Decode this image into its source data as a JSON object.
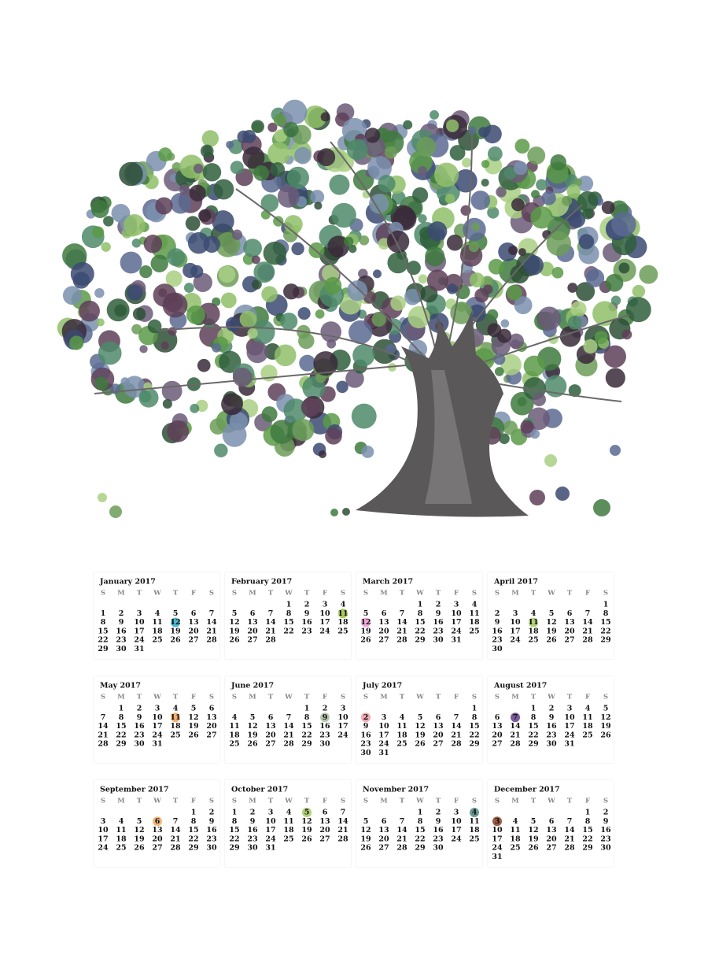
{
  "weekdays": [
    "S",
    "M",
    "T",
    "W",
    "T",
    "F",
    "S"
  ],
  "months": [
    {
      "title": "January  2017",
      "highlight": {
        "day": 12,
        "color": "#4fb7cf"
      },
      "weeks": [
        [
          null,
          null,
          null,
          null,
          null,
          null,
          null
        ],
        [
          1,
          2,
          3,
          4,
          5,
          6,
          7
        ],
        [
          8,
          9,
          10,
          11,
          12,
          13,
          14
        ],
        [
          15,
          16,
          17,
          18,
          19,
          20,
          21
        ],
        [
          22,
          23,
          24,
          25,
          26,
          27,
          28
        ],
        [
          29,
          30,
          31,
          null,
          null,
          null,
          null
        ]
      ]
    },
    {
      "title": "February 2017",
      "highlight": {
        "day": 11,
        "color": "#a9c95a"
      },
      "weeks": [
        [
          null,
          null,
          null,
          1,
          2,
          3,
          4
        ],
        [
          5,
          6,
          7,
          8,
          9,
          10,
          11
        ],
        [
          12,
          13,
          14,
          15,
          16,
          17,
          18
        ],
        [
          19,
          20,
          21,
          22,
          23,
          24,
          25
        ],
        [
          26,
          27,
          28,
          null,
          null,
          null,
          null
        ]
      ]
    },
    {
      "title": "March 2017",
      "highlight": {
        "day": 12,
        "color": "#f0a8d8"
      },
      "weeks": [
        [
          null,
          null,
          null,
          1,
          2,
          3,
          4
        ],
        [
          5,
          6,
          7,
          8,
          9,
          10,
          11
        ],
        [
          12,
          13,
          14,
          15,
          16,
          17,
          18
        ],
        [
          19,
          20,
          21,
          22,
          23,
          24,
          25
        ],
        [
          26,
          27,
          28,
          29,
          30,
          31,
          null
        ]
      ]
    },
    {
      "title": "April 2017",
      "highlight": {
        "day": 11,
        "color": "#b5d27a"
      },
      "weeks": [
        [
          null,
          null,
          null,
          null,
          null,
          null,
          1
        ],
        [
          2,
          3,
          4,
          5,
          6,
          7,
          8
        ],
        [
          9,
          10,
          11,
          12,
          13,
          14,
          15
        ],
        [
          16,
          17,
          18,
          19,
          20,
          21,
          22
        ],
        [
          23,
          24,
          25,
          26,
          27,
          28,
          29
        ],
        [
          30,
          null,
          null,
          null,
          null,
          null,
          null
        ]
      ]
    },
    {
      "title": "May 2017",
      "highlight": {
        "day": 11,
        "color": "#f2b070"
      },
      "weeks": [
        [
          null,
          1,
          2,
          3,
          4,
          5,
          6
        ],
        [
          7,
          8,
          9,
          10,
          11,
          12,
          13
        ],
        [
          14,
          15,
          16,
          17,
          18,
          19,
          20
        ],
        [
          21,
          22,
          23,
          24,
          25,
          26,
          27
        ],
        [
          28,
          29,
          30,
          31,
          null,
          null,
          null
        ]
      ]
    },
    {
      "title": "June 2017",
      "highlight": {
        "day": 9,
        "color": "#b8c8b0"
      },
      "weeks": [
        [
          null,
          null,
          null,
          null,
          1,
          2,
          3
        ],
        [
          4,
          5,
          6,
          7,
          8,
          9,
          10
        ],
        [
          11,
          12,
          13,
          14,
          15,
          16,
          17
        ],
        [
          18,
          19,
          20,
          21,
          22,
          23,
          24
        ],
        [
          25,
          26,
          27,
          28,
          29,
          30,
          null
        ]
      ]
    },
    {
      "title": "July 2017",
      "highlight": {
        "day": 2,
        "color": "#f3a9b3"
      },
      "weeks": [
        [
          null,
          null,
          null,
          null,
          null,
          null,
          1
        ],
        [
          2,
          3,
          4,
          5,
          6,
          7,
          8
        ],
        [
          9,
          10,
          11,
          12,
          13,
          14,
          15
        ],
        [
          16,
          17,
          18,
          19,
          20,
          21,
          22
        ],
        [
          23,
          24,
          25,
          26,
          27,
          28,
          29
        ],
        [
          30,
          31,
          null,
          null,
          null,
          null,
          null
        ]
      ]
    },
    {
      "title": "August 2017",
      "highlight": {
        "day": 7,
        "color": "#7b5a9a"
      },
      "weeks": [
        [
          null,
          null,
          1,
          2,
          3,
          4,
          5
        ],
        [
          6,
          7,
          8,
          9,
          10,
          11,
          12
        ],
        [
          13,
          14,
          15,
          16,
          17,
          18,
          19
        ],
        [
          20,
          21,
          22,
          23,
          24,
          25,
          26
        ],
        [
          27,
          28,
          29,
          30,
          31,
          null,
          null
        ]
      ]
    },
    {
      "title": "September 2017",
      "highlight": {
        "day": 6,
        "color": "#f4b67a"
      },
      "weeks": [
        [
          null,
          null,
          null,
          null,
          null,
          1,
          2
        ],
        [
          3,
          4,
          5,
          6,
          7,
          8,
          9
        ],
        [
          10,
          11,
          12,
          13,
          14,
          15,
          16
        ],
        [
          17,
          18,
          19,
          20,
          21,
          22,
          23
        ],
        [
          24,
          25,
          26,
          27,
          28,
          29,
          30
        ]
      ]
    },
    {
      "title": "October 2017",
      "highlight": {
        "day": 5,
        "color": "#b2d17a"
      },
      "weeks": [
        [
          1,
          2,
          3,
          4,
          5,
          6,
          7
        ],
        [
          8,
          9,
          10,
          11,
          12,
          13,
          14
        ],
        [
          15,
          16,
          17,
          18,
          19,
          20,
          21
        ],
        [
          22,
          23,
          24,
          25,
          26,
          27,
          28
        ],
        [
          29,
          30,
          31,
          null,
          null,
          null,
          null
        ]
      ]
    },
    {
      "title": "November 2017",
      "highlight": {
        "day": 4,
        "color": "#6a9c94"
      },
      "weeks": [
        [
          null,
          null,
          null,
          1,
          2,
          3,
          4
        ],
        [
          5,
          6,
          7,
          8,
          9,
          10,
          11
        ],
        [
          12,
          13,
          14,
          15,
          16,
          17,
          18
        ],
        [
          19,
          20,
          21,
          22,
          23,
          24,
          25
        ],
        [
          26,
          27,
          28,
          29,
          30,
          null,
          null
        ]
      ]
    },
    {
      "title": "December 2017",
      "highlight": {
        "day": 3,
        "color": "#9a5c42"
      },
      "weeks": [
        [
          null,
          null,
          null,
          null,
          null,
          1,
          2
        ],
        [
          3,
          4,
          5,
          6,
          7,
          8,
          9
        ],
        [
          10,
          11,
          12,
          13,
          14,
          15,
          16
        ],
        [
          17,
          18,
          19,
          20,
          21,
          22,
          23
        ],
        [
          24,
          25,
          26,
          27,
          28,
          29,
          30
        ],
        [
          31,
          null,
          null,
          null,
          null,
          null,
          null
        ]
      ]
    }
  ]
}
